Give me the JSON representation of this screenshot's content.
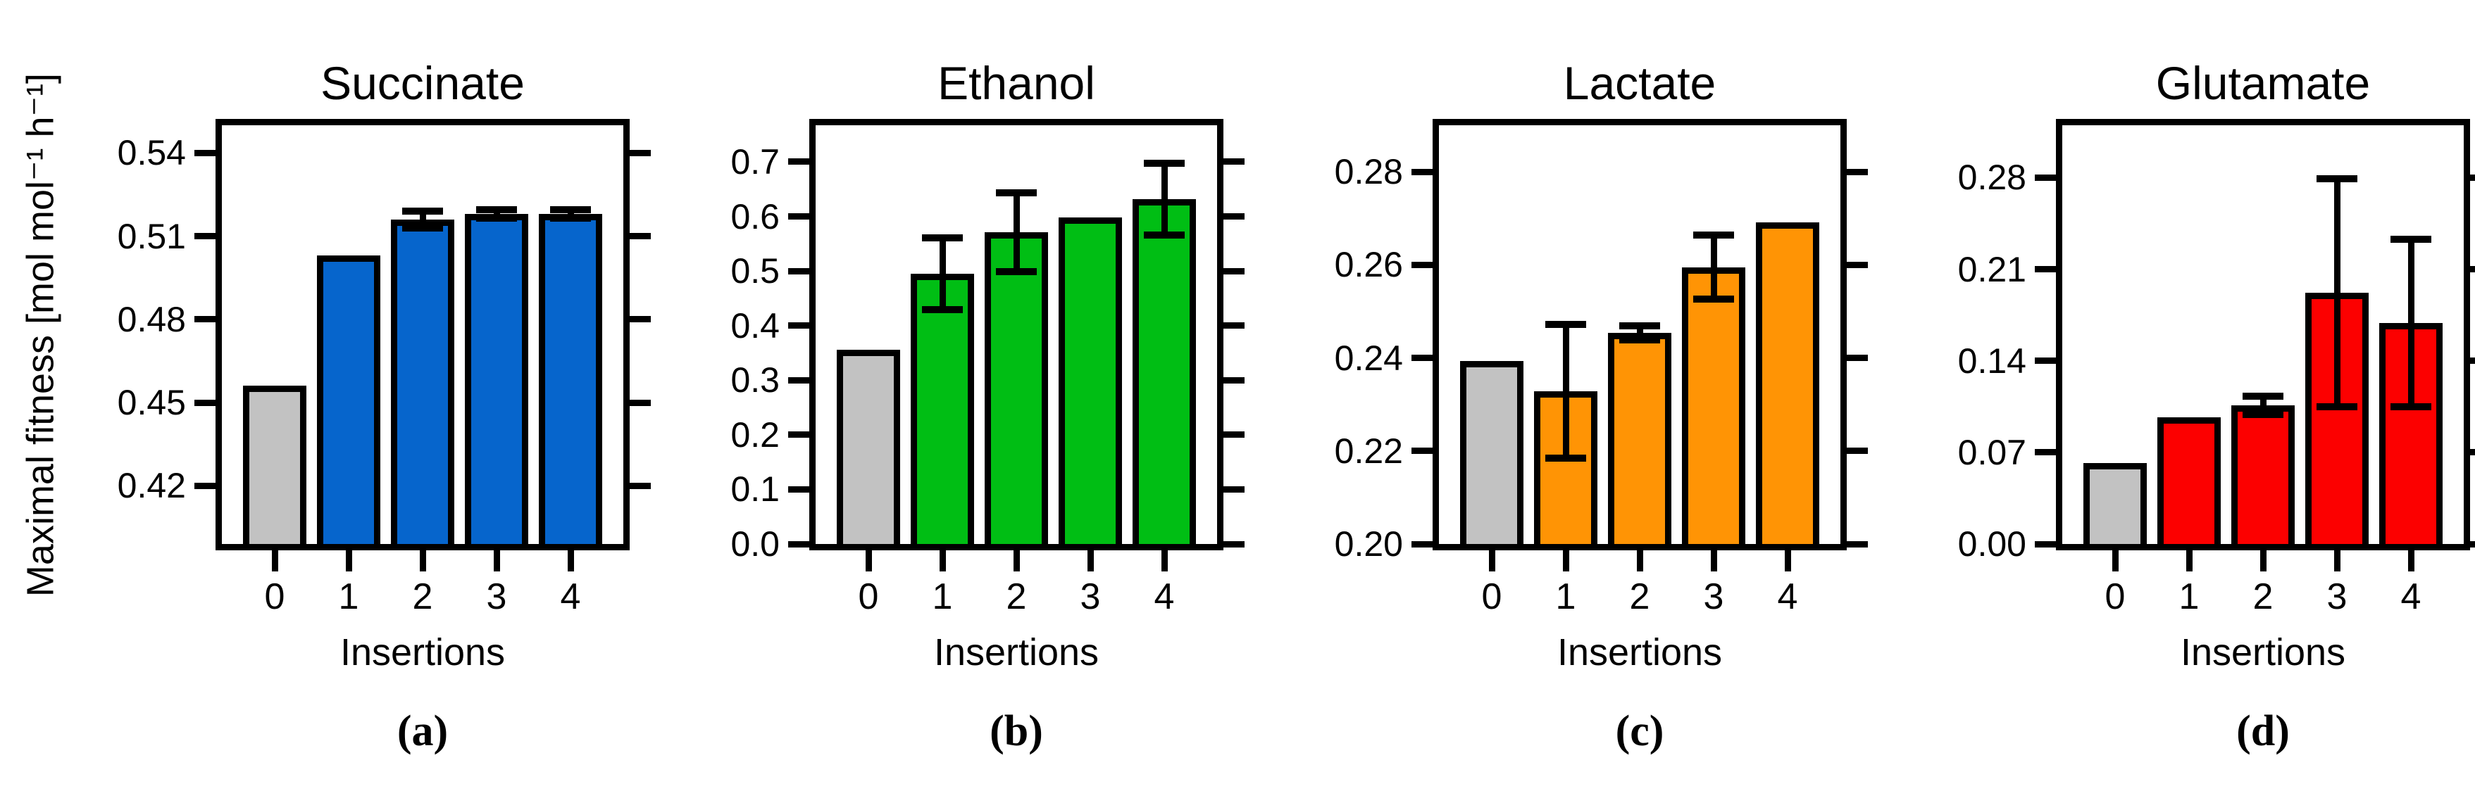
{
  "figure": {
    "y_axis_label": "Maximal fitness [mol mol⁻¹ h⁻¹]",
    "x_axis_label": "Insertions",
    "background_color": "#ffffff",
    "axis_color": "#000000",
    "baseline_bar_color": "#c2c2c2",
    "panel_letters": [
      "(a)",
      "(b)",
      "(c)",
      "(d)"
    ]
  },
  "chart_data": [
    {
      "type": "bar",
      "panel_letter": "(a)",
      "title": "Succinate",
      "xlabel": "Insertions",
      "ylabel": "Maximal fitness [mol mol⁻¹ h⁻¹]",
      "categories": [
        "0",
        "1",
        "2",
        "3",
        "4"
      ],
      "values": [
        0.456,
        0.503,
        0.516,
        0.518,
        0.518
      ],
      "errors": [
        0,
        0,
        0.003,
        0.0015,
        0.0015
      ],
      "bar_colors": [
        "#c2c2c2",
        "#0665cc",
        "#0665cc",
        "#0665cc",
        "#0665cc"
      ],
      "yticks": [
        "0.42",
        "0.45",
        "0.48",
        "0.51",
        "0.54"
      ],
      "ylim": [
        0.399,
        0.55
      ],
      "grid": false,
      "legend": null
    },
    {
      "type": "bar",
      "panel_letter": "(b)",
      "title": "Ethanol",
      "xlabel": "Insertions",
      "ylabel": "Maximal fitness [mol mol⁻¹ h⁻¹]",
      "categories": [
        "0",
        "1",
        "2",
        "3",
        "4"
      ],
      "values": [
        0.356,
        0.495,
        0.571,
        0.598,
        0.632
      ],
      "errors": [
        0,
        0.066,
        0.072,
        0,
        0.066
      ],
      "bar_colors": [
        "#c2c2c2",
        "#00be14",
        "#00be14",
        "#00be14",
        "#00be14"
      ],
      "yticks": [
        "0.0",
        "0.1",
        "0.2",
        "0.3",
        "0.4",
        "0.5",
        "0.6",
        "0.7"
      ],
      "ylim": [
        0.0,
        0.767
      ],
      "grid": false,
      "legend": null
    },
    {
      "type": "bar",
      "panel_letter": "(c)",
      "title": "Lactate",
      "xlabel": "Insertions",
      "ylabel": "Maximal fitness [mol mol⁻¹ h⁻¹]",
      "categories": [
        "0",
        "1",
        "2",
        "3",
        "4"
      ],
      "values": [
        0.2393,
        0.2328,
        0.2454,
        0.2595,
        0.2692
      ],
      "errors": [
        0,
        0.0144,
        0.0015,
        0.0069,
        0
      ],
      "bar_colors": [
        "#c2c2c2",
        "#ff9405",
        "#ff9405",
        "#ff9405",
        "#ff9405"
      ],
      "yticks": [
        "0.20",
        "0.22",
        "0.24",
        "0.26",
        "0.28"
      ],
      "ylim": [
        0.2,
        0.29
      ],
      "grid": false,
      "legend": null
    },
    {
      "type": "bar",
      "panel_letter": "(d)",
      "title": "Glutamate",
      "xlabel": "Insertions",
      "ylabel": "Maximal fitness [mol mol⁻¹ h⁻¹]",
      "categories": [
        "0",
        "1",
        "2",
        "3",
        "4"
      ],
      "values": [
        0.062,
        0.097,
        0.106,
        0.192,
        0.169
      ],
      "errors": [
        0,
        0,
        0.007,
        0.087,
        0.064
      ],
      "bar_colors": [
        "#c2c2c2",
        "#fc0000",
        "#fc0000",
        "#fc0000",
        "#fc0000"
      ],
      "yticks": [
        "0.00",
        "0.07",
        "0.14",
        "0.21",
        "0.28"
      ],
      "ylim": [
        0.0,
        0.32
      ],
      "grid": false,
      "legend": null
    }
  ]
}
